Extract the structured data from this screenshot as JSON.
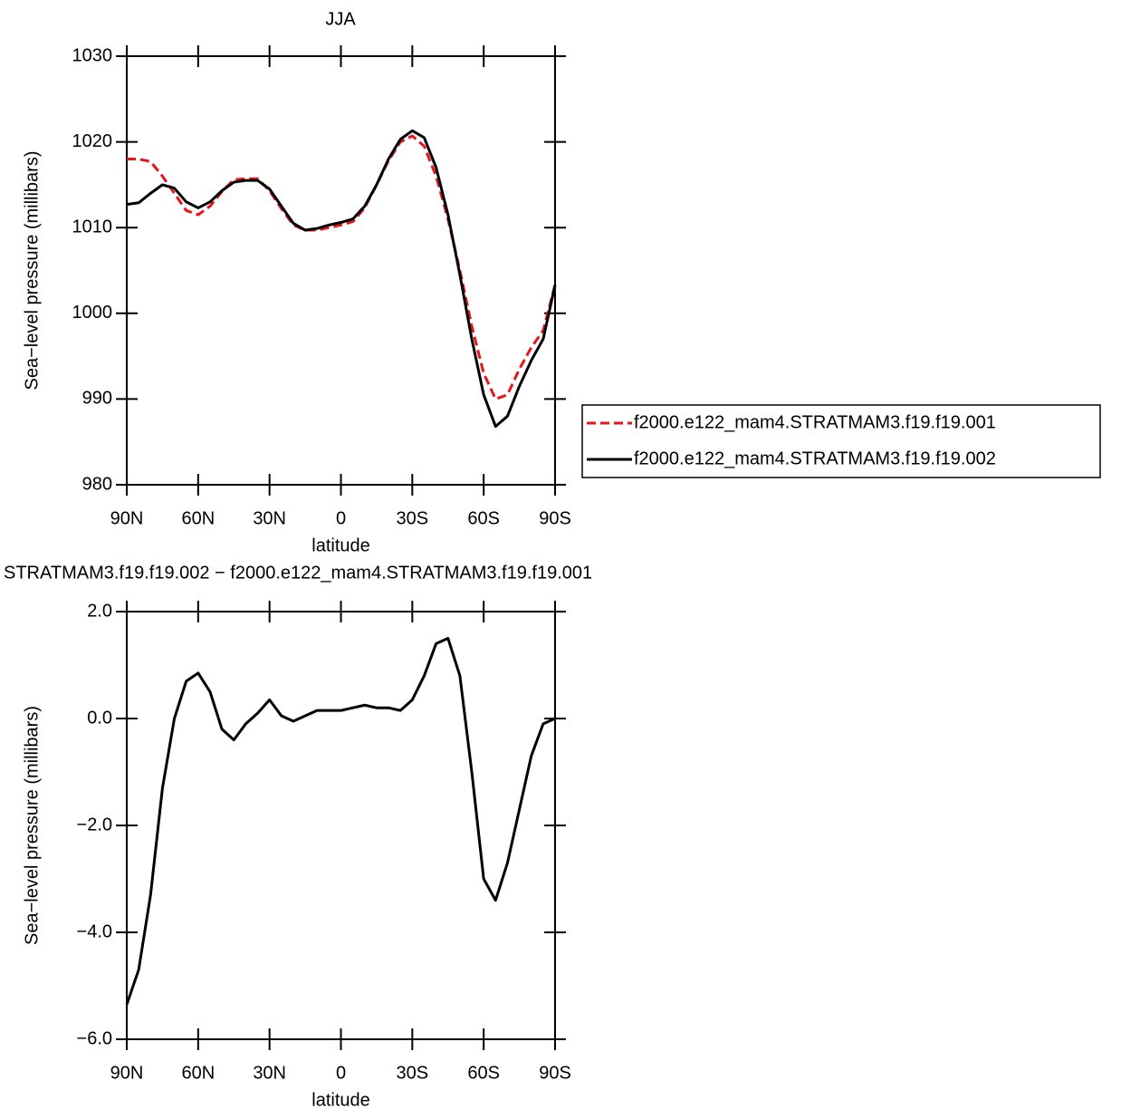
{
  "chart_data": [
    {
      "type": "line",
      "title": "JJA",
      "xlabel": "latitude",
      "ylabel": "Sea−level pressure (millibars)",
      "x": [
        90,
        85,
        80,
        75,
        70,
        65,
        60,
        55,
        50,
        45,
        40,
        35,
        30,
        25,
        20,
        15,
        10,
        5,
        0,
        -5,
        -10,
        -15,
        -20,
        -25,
        -30,
        -35,
        -40,
        -45,
        -50,
        -55,
        -60,
        -65,
        -70,
        -75,
        -80,
        -85,
        -90
      ],
      "series": [
        {
          "name": "f2000.e122_mam4.STRATMAM3.f19.f19.001",
          "color": "#e8141a",
          "linestyle": "dashed",
          "values": [
            1018.0,
            1018.0,
            1017.7,
            1016.0,
            1014.0,
            1012.0,
            1011.5,
            1012.5,
            1014.2,
            1015.6,
            1015.7,
            1015.7,
            1014.3,
            1012.2,
            1010.3,
            1009.7,
            1009.7,
            1010.0,
            1010.3,
            1010.7,
            1012.3,
            1015.0,
            1017.8,
            1020.0,
            1020.7,
            1019.5,
            1016.0,
            1011.0,
            1005.0,
            998.5,
            993.0,
            990.0,
            990.5,
            993.5,
            996.0,
            998.0,
            1003.3
          ]
        },
        {
          "name": "f2000.e122_mam4.STRATMAM3.f19.f19.002",
          "color": "#000000",
          "linestyle": "solid",
          "values": [
            1012.7,
            1012.9,
            1014.0,
            1015.0,
            1014.6,
            1013.0,
            1012.3,
            1013.0,
            1014.3,
            1015.3,
            1015.5,
            1015.5,
            1014.5,
            1012.5,
            1010.5,
            1009.7,
            1009.9,
            1010.3,
            1010.6,
            1011.0,
            1012.5,
            1015.0,
            1018.0,
            1020.3,
            1021.3,
            1020.5,
            1017.0,
            1011.5,
            1004.5,
            997.0,
            990.5,
            986.8,
            988.0,
            991.5,
            994.5,
            997.0,
            1003.3
          ]
        }
      ],
      "xlim": [
        90,
        -90
      ],
      "xticks": [
        {
          "value": 90,
          "label": "90N"
        },
        {
          "value": 60,
          "label": "60N"
        },
        {
          "value": 30,
          "label": "30N"
        },
        0,
        {
          "value": -30,
          "label": "30S"
        },
        {
          "value": -60,
          "label": "60S"
        },
        {
          "value": -90,
          "label": "90S"
        }
      ],
      "ylim": [
        980,
        1030
      ],
      "yticks": [
        980,
        990,
        1000,
        1010,
        1020,
        1030
      ],
      "legend": "outside-right"
    },
    {
      "type": "line",
      "title": "STRATMAM3.f19.f19.002 − f2000.e122_mam4.STRATMAM3.f19.f19.001",
      "xlabel": "latitude",
      "ylabel": "Sea−level pressure (millibars)",
      "x": [
        90,
        85,
        80,
        75,
        70,
        65,
        60,
        55,
        50,
        45,
        40,
        35,
        30,
        25,
        20,
        15,
        10,
        5,
        0,
        -5,
        -10,
        -15,
        -20,
        -25,
        -30,
        -35,
        -40,
        -45,
        -50,
        -55,
        -60,
        -65,
        -70,
        -75,
        -80,
        -85,
        -90
      ],
      "series": [
        {
          "color": "#000000",
          "linestyle": "solid",
          "values": [
            -5.35,
            -4.7,
            -3.3,
            -1.3,
            0.0,
            0.7,
            0.85,
            0.5,
            -0.2,
            -0.4,
            -0.1,
            0.1,
            0.35,
            0.05,
            -0.05,
            0.05,
            0.15,
            0.15,
            0.15,
            0.2,
            0.25,
            0.2,
            0.2,
            0.15,
            0.35,
            0.8,
            1.4,
            1.5,
            0.8,
            -1.0,
            -3.0,
            -3.4,
            -2.7,
            -1.7,
            -0.7,
            -0.1,
            0.0
          ]
        }
      ],
      "xlim": [
        90,
        -90
      ],
      "xticks": [
        {
          "value": 90,
          "label": "90N"
        },
        {
          "value": 60,
          "label": "60N"
        },
        {
          "value": 30,
          "label": "30N"
        },
        0,
        {
          "value": -30,
          "label": "30S"
        },
        {
          "value": -60,
          "label": "60S"
        },
        {
          "value": -90,
          "label": "90S"
        }
      ],
      "ylim": [
        -6,
        2
      ],
      "yticks": [
        {
          "value": -6,
          "label": "−6.0"
        },
        {
          "value": -4,
          "label": "−4.0"
        },
        {
          "value": -2,
          "label": "−2.0"
        },
        {
          "value": 0,
          "label": "0.0"
        },
        {
          "value": 2,
          "label": "2.0"
        }
      ]
    }
  ]
}
